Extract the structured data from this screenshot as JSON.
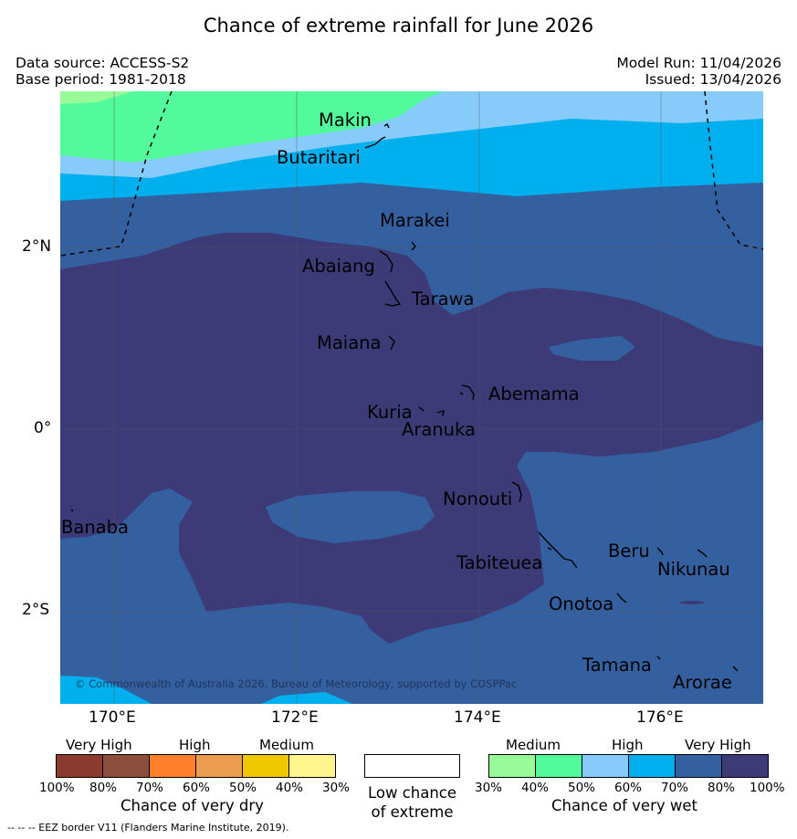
{
  "title": "Chance of extreme rainfall for June 2026",
  "meta": {
    "data_source": "Data source: ACCESS-S2",
    "base_period": "Base period: 1981-2018",
    "model_run": "Model Run: 11/04/2026",
    "issued": "Issued: 13/04/2026"
  },
  "axes": {
    "lon_labels": [
      "170°E",
      "172°E",
      "174°E",
      "176°E"
    ],
    "lat_labels": [
      "2°N",
      "0°",
      "2°S"
    ]
  },
  "places": {
    "makin": "Makin",
    "butaritari": "Butaritari",
    "marakei": "Marakei",
    "abaiang": "Abaiang",
    "tarawa": "Tarawa",
    "maiana": "Maiana",
    "abemama": "Abemama",
    "kuria": "Kuria",
    "aranuka": "Aranuka",
    "nonouti": "Nonouti",
    "banaba": "Banaba",
    "beru": "Beru",
    "tabiteuea": "Tabiteuea",
    "nikunau": "Nikunau",
    "onotoa": "Onotoa",
    "tamana": "Tamana",
    "arorae": "Arorae"
  },
  "copyright": "© Commonwealth of Australia 2026, Bureau of Meteorology, supported by COSPPac",
  "legend_dry": {
    "categories": [
      "Very High",
      "High",
      "Medium"
    ],
    "percent_labels": [
      "100%",
      "80%",
      "70%",
      "60%",
      "50%",
      "40%",
      "30%"
    ],
    "colors": [
      "#8c3a30",
      "#8c4e3c",
      "#ff7f2a",
      "#eb9c4f",
      "#f0c800",
      "#fff58c"
    ],
    "title": "Chance of very dry"
  },
  "legend_low": {
    "line1": "Low chance",
    "line2": "of extreme",
    "color": "#ffffff"
  },
  "legend_wet": {
    "categories": [
      "Medium",
      "High",
      "Very High"
    ],
    "percent_labels": [
      "30%",
      "40%",
      "50%",
      "60%",
      "70%",
      "80%",
      "100%"
    ],
    "colors": [
      "#98fa98",
      "#52fa9c",
      "#87cbfa",
      "#00b0ee",
      "#3560a0",
      "#3c3b78"
    ],
    "title": "Chance of very wet"
  },
  "footer": "--  --  -- EEZ border V11 (Flanders Marine Institute, 2019)."
}
